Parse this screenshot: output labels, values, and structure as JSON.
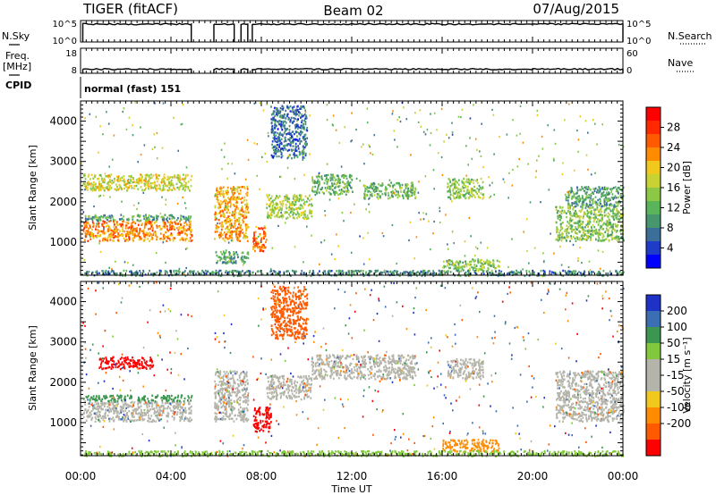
{
  "header": {
    "radar_title": "TIGER (fitACF)",
    "beam_title": "Beam 02",
    "date_title": "07/Aug/2015"
  },
  "side_labels": {
    "nsky": "N.Sky",
    "freq": "Freq.",
    "freq_unit": "[MHz]",
    "cpid": "CPID",
    "nsearch": "N.Search",
    "nave": "Nave"
  },
  "cpid_text": "normal (fast) 151",
  "colors": {
    "power_scale": [
      "#0000ff",
      "#1e3cc8",
      "#3c6e9a",
      "#46966e",
      "#5ab45a",
      "#8cc846",
      "#c8d232",
      "#f0c81e",
      "#ff8c00",
      "#ff5a00",
      "#ff2800",
      "#ff0000"
    ],
    "velocity_scale": [
      "#1e32c8",
      "#3c6eb4",
      "#3c9650",
      "#82c83c",
      "#b4b4aa",
      "#b4b4aa",
      "#f0c81e",
      "#ff8c00",
      "#ff5a00",
      "#ff0000"
    ],
    "ground_scatter": "#b4b4aa"
  },
  "chart_data": [
    {
      "panel": "nsky-nsearch",
      "type": "line",
      "x_unit": "hours UT",
      "ylabel_left": "N.Sky",
      "ylabel_right": "N.Search",
      "yticks_left": [
        "10^5",
        "10^0"
      ],
      "yticks_right": [
        "10^5",
        "10^0"
      ],
      "xlim": [
        0,
        24
      ],
      "segments": [
        [
          0.1,
          4.9
        ],
        [
          5.9,
          6.8
        ],
        [
          7.1,
          7.4
        ],
        [
          7.6,
          24.0
        ]
      ]
    },
    {
      "panel": "freq-nave",
      "type": "line",
      "ylabel_left": "Freq. [MHz]",
      "ylabel_right": "Nave",
      "yticks_left": [
        "18",
        "8"
      ],
      "yticks_right": [
        "60",
        "0"
      ],
      "ylim_left": [
        8,
        18
      ],
      "freq_value_mhz": 10,
      "segments": [
        [
          0.1,
          4.9
        ],
        [
          5.9,
          6.8
        ],
        [
          7.1,
          7.4
        ],
        [
          7.6,
          24.0
        ]
      ]
    },
    {
      "panel": "power",
      "type": "heatmap",
      "xlabel": "",
      "ylabel": "Slant Range [km]",
      "xlim": [
        0,
        24
      ],
      "ylim": [
        180,
        4500
      ],
      "yticks": [
        1000,
        2000,
        3000,
        4000
      ],
      "colorbar_label": "Power [dB]",
      "colorbar_range": [
        0,
        32
      ],
      "colorbar_ticks": [
        4,
        8,
        12,
        16,
        20,
        24,
        28
      ],
      "gaps_hours": [
        [
          4.9,
          5.9
        ],
        [
          6.8,
          7.1
        ],
        [
          7.4,
          7.6
        ]
      ],
      "regions": [
        {
          "t": [
            0.1,
            4.9
          ],
          "r": [
            1050,
            1550
          ],
          "level": 24
        },
        {
          "t": [
            0.1,
            4.9
          ],
          "r": [
            1550,
            1700
          ],
          "level": 10
        },
        {
          "t": [
            0.1,
            4.9
          ],
          "r": [
            2300,
            2700
          ],
          "level": 18
        },
        {
          "t": [
            5.9,
            7.4
          ],
          "r": [
            1050,
            2400
          ],
          "level": 22
        },
        {
          "t": [
            5.9,
            7.4
          ],
          "r": [
            500,
            800
          ],
          "level": 10
        },
        {
          "t": [
            7.6,
            8.2
          ],
          "r": [
            800,
            1400
          ],
          "level": 26
        },
        {
          "t": [
            8.2,
            10.2
          ],
          "r": [
            1600,
            2200
          ],
          "level": 16
        },
        {
          "t": [
            8.4,
            10.0
          ],
          "r": [
            3100,
            4400
          ],
          "level": 6
        },
        {
          "t": [
            10.2,
            12.0
          ],
          "r": [
            2200,
            2700
          ],
          "level": 12
        },
        {
          "t": [
            12.5,
            14.8
          ],
          "r": [
            2100,
            2500
          ],
          "level": 12
        },
        {
          "t": [
            16.2,
            17.8
          ],
          "r": [
            2100,
            2600
          ],
          "level": 14
        },
        {
          "t": [
            16.0,
            18.5
          ],
          "r": [
            300,
            600
          ],
          "level": 14
        },
        {
          "t": [
            21.0,
            24.0
          ],
          "r": [
            1050,
            1900
          ],
          "level": 14
        },
        {
          "t": [
            21.4,
            24.0
          ],
          "r": [
            1900,
            2400
          ],
          "level": 10
        },
        {
          "t": [
            0.1,
            24.0
          ],
          "r": [
            190,
            320
          ],
          "level": 8
        }
      ]
    },
    {
      "panel": "velocity",
      "type": "heatmap",
      "xlabel": "Time UT",
      "ylabel": "Slant Range [km]",
      "xlim": [
        0,
        24
      ],
      "ylim": [
        180,
        4500
      ],
      "yticks": [
        1000,
        2000,
        3000,
        4000
      ],
      "xticks": [
        "00:00",
        "04:00",
        "08:00",
        "12:00",
        "16:00",
        "20:00",
        "00:00"
      ],
      "xtick_hours": [
        0,
        4,
        8,
        12,
        16,
        20,
        24
      ],
      "colorbar_label": "Velocity [m s⁻¹]",
      "colorbar_ticks": [
        "200",
        "100",
        "50",
        "15",
        "-15",
        "-50",
        "-100",
        "-200"
      ],
      "gaps_hours": [
        [
          4.9,
          5.9
        ],
        [
          6.8,
          7.1
        ],
        [
          7.4,
          7.6
        ]
      ],
      "regions": [
        {
          "t": [
            0.1,
            4.9
          ],
          "r": [
            1050,
            1550
          ],
          "level": 0
        },
        {
          "t": [
            0.1,
            4.9
          ],
          "r": [
            1550,
            1700
          ],
          "level": 40
        },
        {
          "t": [
            0.8,
            3.2
          ],
          "r": [
            2350,
            2650
          ],
          "level": -200
        },
        {
          "t": [
            5.9,
            7.4
          ],
          "r": [
            1050,
            2300
          ],
          "level": 0
        },
        {
          "t": [
            7.6,
            8.4
          ],
          "r": [
            800,
            1400
          ],
          "level": -200
        },
        {
          "t": [
            8.2,
            10.2
          ],
          "r": [
            1600,
            2200
          ],
          "level": 0
        },
        {
          "t": [
            8.4,
            10.0
          ],
          "r": [
            3100,
            4400
          ],
          "level": -100
        },
        {
          "t": [
            10.2,
            14.8
          ],
          "r": [
            2100,
            2700
          ],
          "level": 0
        },
        {
          "t": [
            16.2,
            17.8
          ],
          "r": [
            2100,
            2600
          ],
          "level": 0
        },
        {
          "t": [
            16.0,
            18.5
          ],
          "r": [
            300,
            600
          ],
          "level": -50
        },
        {
          "t": [
            21.0,
            24.0
          ],
          "r": [
            1050,
            2300
          ],
          "level": 0
        },
        {
          "t": [
            0.1,
            24.0
          ],
          "r": [
            190,
            320
          ],
          "level": 20
        }
      ]
    }
  ]
}
